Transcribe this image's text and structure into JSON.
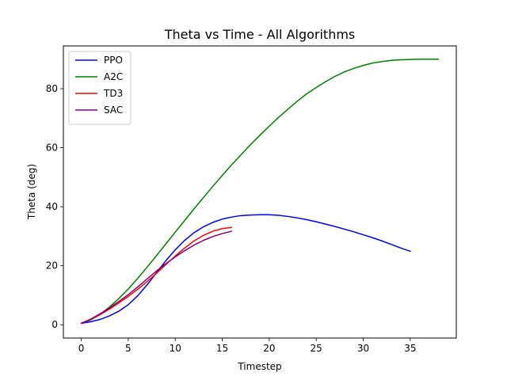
{
  "chart_data": {
    "type": "line",
    "title": "Theta vs Time - All Algorithms",
    "xlabel": "Timestep",
    "ylabel": "Theta (deg)",
    "xlim": [
      -1.9,
      39.9
    ],
    "ylim": [
      -4.5,
      94.5
    ],
    "xticks": [
      0,
      5,
      10,
      15,
      20,
      25,
      30,
      35
    ],
    "yticks": [
      0,
      20,
      40,
      60,
      80
    ],
    "grid": false,
    "legend_position": "top-left",
    "series": [
      {
        "name": "PPO",
        "color": "#0000ff",
        "x": [
          0,
          1,
          2,
          3,
          4,
          5,
          6,
          7,
          8,
          9,
          10,
          11,
          12,
          13,
          14,
          15,
          16,
          17,
          18,
          19,
          20,
          21,
          22,
          23,
          24,
          25,
          26,
          27,
          28,
          29,
          30,
          31,
          32,
          33,
          34,
          35
        ],
        "y": [
          0.5,
          1.0,
          1.8,
          3.0,
          4.6,
          6.8,
          9.8,
          13.5,
          17.6,
          21.7,
          25.4,
          28.6,
          31.2,
          33.2,
          34.7,
          35.8,
          36.5,
          37.0,
          37.2,
          37.3,
          37.3,
          37.1,
          36.7,
          36.2,
          35.6,
          34.9,
          34.1,
          33.3,
          32.4,
          31.5,
          30.5,
          29.5,
          28.4,
          27.2,
          26.0,
          24.9
        ]
      },
      {
        "name": "A2C",
        "color": "#008000",
        "x": [
          0,
          1,
          2,
          3,
          4,
          5,
          6,
          7,
          8,
          9,
          10,
          11,
          12,
          13,
          14,
          15,
          16,
          17,
          18,
          19,
          20,
          21,
          22,
          23,
          24,
          25,
          26,
          27,
          28,
          29,
          30,
          31,
          32,
          33,
          34,
          35,
          36,
          37,
          38
        ],
        "y": [
          0.5,
          1.6,
          3.5,
          6.0,
          8.9,
          12.1,
          15.7,
          19.5,
          23.4,
          27.4,
          31.4,
          35.3,
          39.3,
          43.1,
          46.9,
          50.6,
          54.2,
          57.6,
          61.0,
          64.2,
          67.3,
          70.3,
          73.1,
          75.8,
          78.3,
          80.4,
          82.4,
          84.2,
          85.7,
          86.9,
          87.9,
          88.7,
          89.2,
          89.6,
          89.8,
          89.9,
          90.0,
          90.0,
          90.0
        ]
      },
      {
        "name": "TD3",
        "color": "#ff0000",
        "x": [
          0,
          1,
          2,
          3,
          4,
          5,
          6,
          7,
          8,
          9,
          10,
          11,
          12,
          13,
          14,
          15,
          16
        ],
        "y": [
          0.5,
          1.8,
          3.4,
          5.3,
          7.4,
          9.6,
          12.0,
          14.6,
          17.4,
          20.4,
          23.3,
          26.0,
          28.4,
          30.3,
          31.7,
          32.6,
          33.0
        ]
      },
      {
        "name": "SAC",
        "color": "#800080",
        "x": [
          0,
          1,
          2,
          3,
          4,
          5,
          6,
          7,
          8,
          9,
          10,
          11,
          12,
          13,
          14,
          15,
          16
        ],
        "y": [
          0.5,
          1.9,
          3.7,
          5.7,
          7.9,
          10.2,
          12.8,
          15.5,
          18.2,
          20.7,
          23.0,
          25.1,
          27.0,
          28.6,
          29.9,
          30.9,
          31.7
        ]
      }
    ]
  }
}
